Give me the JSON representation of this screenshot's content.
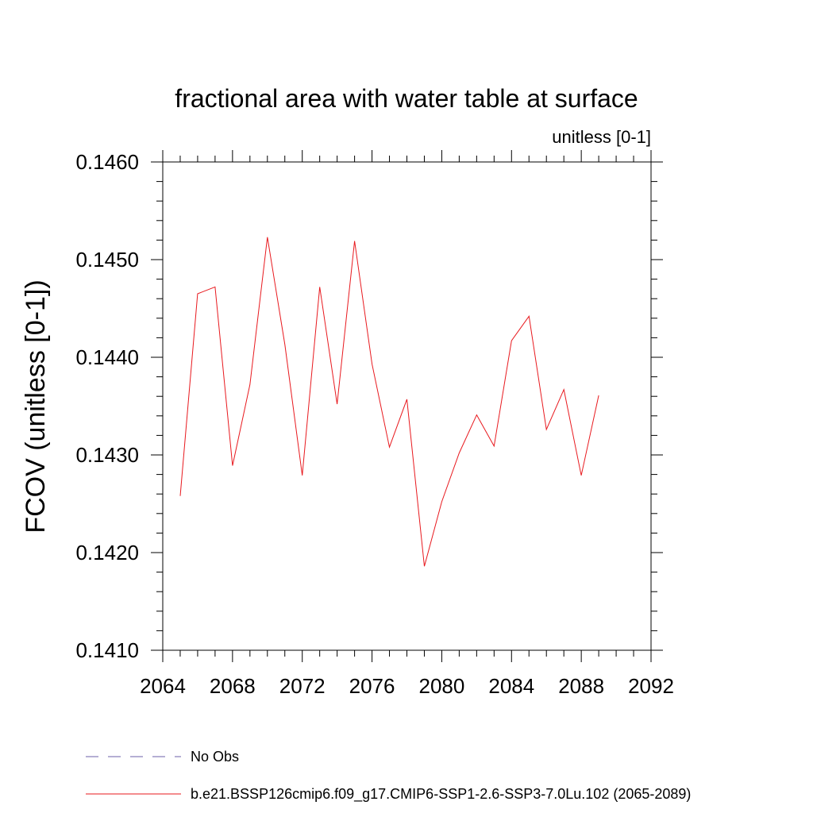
{
  "chart_data": {
    "type": "line",
    "title": "fractional area with water table at surface",
    "units_label": "unitless [0-1]",
    "ylabel": "FCOV  (unitless [0-1])",
    "xlabel": "",
    "xlim": [
      2064,
      2092
    ],
    "ylim": [
      0.141,
      0.146
    ],
    "x_ticks": [
      2064,
      2068,
      2072,
      2076,
      2080,
      2084,
      2088,
      2092
    ],
    "x_tick_labels": [
      "2064",
      "2068",
      "2072",
      "2076",
      "2080",
      "2084",
      "2088",
      "2092"
    ],
    "y_ticks": [
      0.141,
      0.142,
      0.143,
      0.144,
      0.145,
      0.146
    ],
    "y_tick_labels": [
      "0.1410",
      "0.1420",
      "0.1430",
      "0.1440",
      "0.1450",
      "0.1460"
    ],
    "x_minor_step": 1,
    "y_minor_step": 0.0002,
    "grid": false,
    "legend_position": "bottom",
    "series": [
      {
        "name": "b.e21.BSSP126cmip6.f09_g17.CMIP6-SSP1-2.6-SSP3-7.0Lu.102 (2065-2089)",
        "color": "#e8191e",
        "dash": "solid",
        "x": [
          2065,
          2066,
          2067,
          2068,
          2069,
          2070,
          2071,
          2072,
          2073,
          2074,
          2075,
          2076,
          2077,
          2078,
          2079,
          2080,
          2081,
          2082,
          2083,
          2084,
          2085,
          2086,
          2087,
          2088,
          2089
        ],
        "values": [
          0.14258,
          0.14465,
          0.14472,
          0.14289,
          0.14372,
          0.14523,
          0.14413,
          0.14279,
          0.14472,
          0.14352,
          0.14519,
          0.14393,
          0.14308,
          0.14357,
          0.14186,
          0.14252,
          0.14302,
          0.14341,
          0.14309,
          0.14417,
          0.14442,
          0.14326,
          0.14367,
          0.14279,
          0.14361
        ]
      }
    ],
    "legend": [
      {
        "label": "No Obs",
        "color": "#6b5fa8",
        "dash": "dashed"
      },
      {
        "label": "b.e21.BSSP126cmip6.f09_g17.CMIP6-SSP1-2.6-SSP3-7.0Lu.102 (2065-2089)",
        "color": "#e8191e",
        "dash": "solid"
      }
    ]
  }
}
